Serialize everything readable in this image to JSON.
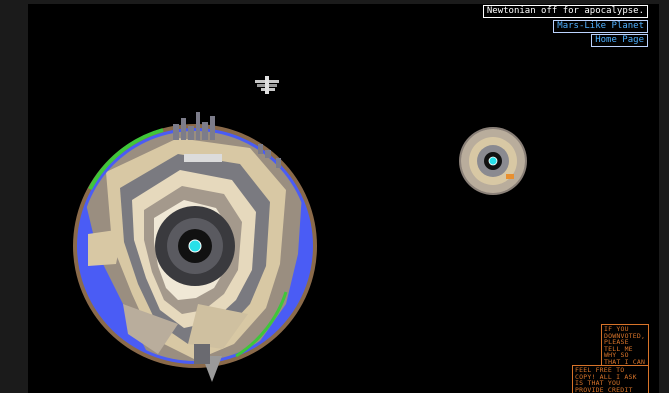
{
  "toolbar": {
    "mode_button": "Newtonian off for apocalypse.",
    "planet_link": "Mars-Like Planet",
    "home_link": "Home Page"
  },
  "notes": {
    "downvote": "If you downvoted, please tell me why so that I can improve.",
    "copy": "Feel free to copy! All I ask is that you provide credit for what you use."
  },
  "colors": {
    "space": "#000000",
    "frame": "#1b1b1b",
    "ocean": "#4a5cf5",
    "core": "#28e0e8",
    "vegetation": "#3fc63a",
    "crust": "#8a6a4a",
    "note_orange": "#d8742a",
    "link_blue": "#4fb0ff"
  },
  "icons": {
    "satellite": "satellite-icon",
    "city": "city-skyline",
    "moon": "moon"
  }
}
